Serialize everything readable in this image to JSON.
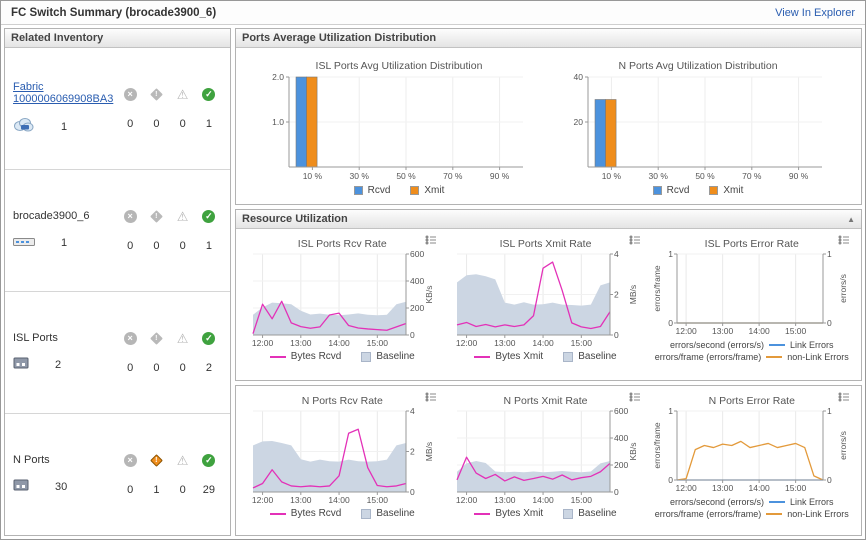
{
  "header": {
    "title": "FC Switch Summary (brocade3900_6)",
    "explorer_link": "View In Explorer"
  },
  "inventory": {
    "title": "Related Inventory",
    "rows": [
      {
        "name": "Fabric 1000006069908BA3",
        "count": "1",
        "statuses": [
          "0",
          "0",
          "0",
          "1"
        ]
      },
      {
        "name": "brocade3900_6",
        "count": "1",
        "statuses": [
          "0",
          "0",
          "0",
          "1"
        ]
      },
      {
        "name": "ISL Ports",
        "count": "2",
        "statuses": [
          "0",
          "0",
          "0",
          "2"
        ]
      },
      {
        "name": "N Ports",
        "count": "30",
        "statuses": [
          "0",
          "1",
          "0",
          "29"
        ]
      }
    ]
  },
  "panels": {
    "ports_avg_title": "Ports Average Utilization Distribution",
    "resource_title": "Resource Utilization"
  },
  "colors": {
    "rcvd_blue": "#4c92dd",
    "xmit_orange": "#ef8d1c",
    "bytes_magenta": "#e331b8",
    "baseline_fill": "#ccd6e3",
    "nonlink_orange": "#e39a3b",
    "link_text": "#2a5db0",
    "ok_green": "#3fa23f"
  },
  "chart_data": [
    {
      "type": "bar",
      "title": "ISL Ports Avg Utilization Distribution",
      "ylim": [
        0,
        2
      ],
      "yticks": [
        1,
        2
      ],
      "ytick_labels": [
        "1.0",
        "2.0"
      ],
      "xticks": [
        10,
        30,
        50,
        70,
        90
      ],
      "xtick_labels": [
        "10 %",
        "30 %",
        "50 %",
        "70 %",
        "90 %"
      ],
      "series": [
        {
          "name": "Rcvd",
          "value": 2,
          "color": "#4c92dd"
        },
        {
          "name": "Xmit",
          "value": 2,
          "color": "#ef8d1c"
        }
      ],
      "legend": [
        "Rcvd",
        "Xmit"
      ]
    },
    {
      "type": "bar",
      "title": "N Ports Avg Utilization Distribution",
      "ylim": [
        0,
        40
      ],
      "yticks": [
        20,
        40
      ],
      "ytick_labels": [
        "20",
        "40"
      ],
      "xticks": [
        10,
        30,
        50,
        70,
        90
      ],
      "xtick_labels": [
        "10 %",
        "30 %",
        "50 %",
        "70 %",
        "90 %"
      ],
      "series": [
        {
          "name": "Rcvd",
          "value": 30,
          "color": "#4c92dd"
        },
        {
          "name": "Xmit",
          "value": 30,
          "color": "#ef8d1c"
        }
      ],
      "legend": [
        "Rcvd",
        "Xmit"
      ]
    },
    {
      "type": "line",
      "title": "ISL Ports Rcv Rate",
      "ylabel": "KB/s",
      "ylim": [
        0,
        600
      ],
      "yticks": [
        0,
        200,
        400,
        600
      ],
      "xtick_idx": [
        1,
        5,
        9,
        13
      ],
      "xtick_labels": [
        "12:00",
        "13:00",
        "14:00",
        "15:00"
      ],
      "series": [
        {
          "name": "Baseline",
          "type": "area",
          "color": "#ccd6e3",
          "values": [
            150,
            205,
            240,
            235,
            228,
            180,
            152,
            158,
            150,
            146,
            152,
            160,
            150,
            146,
            150,
            228,
            246
          ]
        },
        {
          "name": "Bytes Rcvd",
          "type": "line",
          "color": "#e331b8",
          "values": [
            10,
            228,
            120,
            250,
            90,
            62,
            50,
            60,
            148,
            162,
            70,
            52,
            45,
            40,
            35,
            60,
            85
          ]
        }
      ],
      "legend": [
        "Bytes Rcvd",
        "Baseline"
      ]
    },
    {
      "type": "line",
      "title": "ISL Ports Xmit Rate",
      "ylabel": "MB/s",
      "ylim": [
        0,
        4
      ],
      "yticks": [
        0,
        2,
        4
      ],
      "xtick_idx": [
        1,
        5,
        9,
        13
      ],
      "xtick_labels": [
        "12:00",
        "13:00",
        "14:00",
        "15:00"
      ],
      "series": [
        {
          "name": "Baseline",
          "type": "area",
          "color": "#ccd6e3",
          "values": [
            2.6,
            2.95,
            3.0,
            2.9,
            2.75,
            1.6,
            1.5,
            1.62,
            1.5,
            1.52,
            1.6,
            1.5,
            1.48,
            1.45,
            1.5,
            2.45,
            2.6
          ]
        },
        {
          "name": "Bytes Xmit",
          "type": "line",
          "color": "#e331b8",
          "values": [
            0.5,
            0.62,
            0.42,
            0.52,
            0.4,
            0.5,
            0.42,
            0.5,
            0.95,
            3.3,
            3.6,
            2.2,
            0.6,
            0.4,
            0.32,
            0.42,
            1.15
          ]
        }
      ],
      "legend": [
        "Bytes Xmit",
        "Baseline"
      ]
    },
    {
      "type": "line",
      "dual": true,
      "title": "ISL Ports Error Rate",
      "ylabel_left": "errors/frame",
      "ylabel_right": "errors/s",
      "ylim": [
        0,
        1
      ],
      "yticks": [
        0,
        1
      ],
      "xtick_idx": [
        1,
        5,
        9,
        13
      ],
      "xtick_labels": [
        "12:00",
        "13:00",
        "14:00",
        "15:00"
      ],
      "series": [
        {
          "name": "Link Errors",
          "type": "line",
          "color": "#4c92dd",
          "values": [
            0,
            0,
            0,
            0,
            0,
            0,
            0,
            0,
            0,
            0,
            0,
            0,
            0,
            0,
            0,
            0,
            0
          ]
        },
        {
          "name": "non-Link Errors",
          "type": "line",
          "color": "#e39a3b",
          "values": [
            0,
            0,
            0,
            0,
            0,
            0,
            0,
            0,
            0,
            0,
            0,
            0,
            0,
            0,
            0,
            0,
            0
          ]
        }
      ],
      "legend_axis": [
        "errors/second (errors/s)",
        "errors/frame (errors/frame)"
      ],
      "legend_entries": [
        "Link Errors",
        "non-Link Errors"
      ]
    },
    {
      "type": "line",
      "title": "N Ports Rcv Rate",
      "ylabel": "MB/s",
      "ylim": [
        0,
        4
      ],
      "yticks": [
        0,
        2,
        4
      ],
      "xtick_idx": [
        1,
        5,
        9,
        13
      ],
      "xtick_labels": [
        "12:00",
        "13:00",
        "14:00",
        "15:00"
      ],
      "series": [
        {
          "name": "Baseline",
          "type": "area",
          "color": "#ccd6e3",
          "values": [
            2.3,
            2.5,
            2.52,
            2.42,
            2.3,
            1.62,
            1.5,
            1.6,
            1.52,
            1.5,
            1.6,
            1.52,
            1.5,
            1.52,
            1.6,
            2.3,
            2.42
          ]
        },
        {
          "name": "Bytes Rcvd",
          "type": "line",
          "color": "#e331b8",
          "values": [
            0.2,
            0.42,
            1.1,
            0.5,
            0.3,
            0.26,
            0.3,
            0.26,
            0.3,
            0.8,
            2.9,
            3.1,
            1.2,
            0.32,
            0.26,
            0.3,
            0.42
          ]
        }
      ],
      "legend": [
        "Bytes Rcvd",
        "Baseline"
      ]
    },
    {
      "type": "line",
      "title": "N Ports Xmit Rate",
      "ylabel": "KB/s",
      "ylim": [
        0,
        600
      ],
      "yticks": [
        0,
        200,
        400,
        600
      ],
      "xtick_idx": [
        1,
        5,
        9,
        13
      ],
      "xtick_labels": [
        "12:00",
        "13:00",
        "14:00",
        "15:00"
      ],
      "series": [
        {
          "name": "Baseline",
          "type": "area",
          "color": "#ccd6e3",
          "values": [
            150,
            212,
            230,
            215,
            152,
            146,
            150,
            146,
            152,
            146,
            150,
            156,
            150,
            146,
            152,
            212,
            230
          ]
        },
        {
          "name": "Bytes Xmit",
          "type": "line",
          "color": "#e331b8",
          "values": [
            90,
            258,
            140,
            100,
            130,
            82,
            112,
            86,
            100,
            116,
            95,
            126,
            90,
            106,
            116,
            150,
            212
          ]
        }
      ],
      "legend": [
        "Bytes Xmit",
        "Baseline"
      ]
    },
    {
      "type": "line",
      "dual": true,
      "title": "N Ports Error Rate",
      "ylabel_left": "errors/frame",
      "ylabel_right": "errors/s",
      "ylim": [
        0,
        1
      ],
      "yticks": [
        0,
        1
      ],
      "xtick_idx": [
        1,
        5,
        9,
        13
      ],
      "xtick_labels": [
        "12:00",
        "13:00",
        "14:00",
        "15:00"
      ],
      "series": [
        {
          "name": "Link Errors",
          "type": "line",
          "color": "#4c92dd",
          "values": [
            0,
            0,
            0,
            0,
            0,
            0,
            0,
            0,
            0,
            0,
            0,
            0,
            0,
            0,
            0,
            0,
            0
          ]
        },
        {
          "name": "non-Link Errors",
          "type": "line",
          "color": "#e39a3b",
          "values": [
            0,
            0.02,
            0.44,
            0.5,
            0.47,
            0.52,
            0.5,
            0.56,
            0.47,
            0.5,
            0.53,
            0.47,
            0.5,
            0.53,
            0.47,
            0.06,
            0
          ]
        }
      ],
      "legend_axis": [
        "errors/second (errors/s)",
        "errors/frame (errors/frame)"
      ],
      "legend_entries": [
        "Link Errors",
        "non-Link Errors"
      ]
    }
  ]
}
